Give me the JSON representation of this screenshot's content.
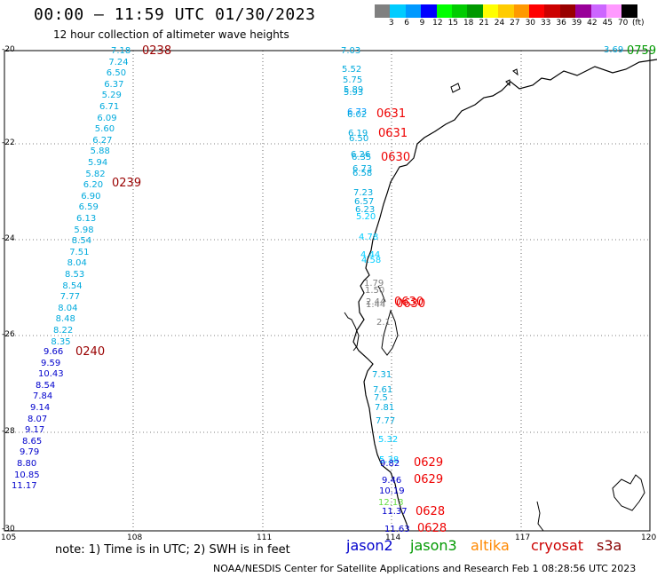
{
  "title": "00:00 – 11:59 UTC 01/30/2023",
  "subtitle": "12 hour collection of altimeter wave heights",
  "note": "note: 1) Time is in UTC; 2) SWH is in feet",
  "credit": "NOAA/NESDIS Center for Satellite Applications and Research   Feb  1 08:28:56 UTC 2023",
  "satellites": [
    {
      "name": "jason2",
      "color": "#0000cc"
    },
    {
      "name": "jason3",
      "color": "#009900"
    },
    {
      "name": "altika",
      "color": "#ff8800"
    },
    {
      "name": "cryosat",
      "color": "#cc0000"
    },
    {
      "name": "s3a",
      "color": "#880000"
    }
  ],
  "colorbar": {
    "unit_label": "(ft)",
    "bins": [
      {
        "label": "3",
        "color": "#808080"
      },
      {
        "label": "6",
        "color": "#00ccff"
      },
      {
        "label": "9",
        "color": "#0099ff"
      },
      {
        "label": "12",
        "color": "#0000ff"
      },
      {
        "label": "15",
        "color": "#00ff00"
      },
      {
        "label": "18",
        "color": "#00cc00"
      },
      {
        "label": "21",
        "color": "#009900"
      },
      {
        "label": "24",
        "color": "#ffff00"
      },
      {
        "label": "27",
        "color": "#ffcc00"
      },
      {
        "label": "30",
        "color": "#ff9900"
      },
      {
        "label": "33",
        "color": "#ff0000"
      },
      {
        "label": "36",
        "color": "#cc0000"
      },
      {
        "label": "39",
        "color": "#990000"
      },
      {
        "label": "42",
        "color": "#990099"
      },
      {
        "label": "45",
        "color": "#cc66ff"
      },
      {
        "label": "70",
        "color": "#ff99ff"
      },
      {
        "label": "",
        "color": "#000000"
      }
    ]
  },
  "axes": {
    "lat_labels": [
      "-20",
      "-22",
      "-24",
      "-26",
      "-28",
      "-30"
    ],
    "lon_labels": [
      "105",
      "108",
      "111",
      "114",
      "117",
      "120"
    ]
  },
  "tracks": [
    {
      "time": "0238",
      "time_color": "#990000",
      "color": "#00aadd",
      "values": [
        "7.18",
        "7.24",
        "6.50",
        "6.37",
        "5.29",
        "6.71",
        "6.09",
        "5.60",
        "6.27",
        "5.88",
        "5.94",
        "5.82",
        "6.20",
        "6.90",
        "6.59",
        "6.13",
        "5.98",
        "8.54",
        "7.51",
        "8.04",
        "8.53",
        "8.54",
        "7.77",
        "8.04",
        "8.48",
        "8.22",
        "8.35"
      ]
    },
    {
      "time": "0239",
      "time_color": "#990000"
    },
    {
      "time": "0240",
      "time_color": "#990000",
      "color2": "#0000cc",
      "values2": [
        "9.66",
        "9.59",
        "10.43",
        "8.54",
        "7.84",
        "9.14",
        "8.07",
        "9.17",
        "8.65",
        "9.79",
        "8.80",
        "10.85",
        "11.17"
      ]
    }
  ],
  "track_b": {
    "values": [
      "7.03",
      "5.52",
      "5.75",
      "5.89",
      "5.93",
      "6.73",
      "6.02",
      "6.19",
      "6.50",
      "6.26",
      "6.35",
      "6.73",
      "6.58",
      "7.23",
      "6.57",
      "6.23",
      "5.20",
      "4.78",
      "4.44",
      "4.58",
      "1.79",
      "1.50",
      "2.44",
      "1.44",
      "2.1",
      "7.31",
      "7.61",
      "7.5",
      "7.81",
      "7.77",
      "5.32",
      "5.38",
      "9.82",
      "9.46",
      "10.19",
      "12.13",
      "11.37",
      "11.63"
    ],
    "times": [
      "0631",
      "0631",
      "0630",
      "0630",
      "0630",
      "0629",
      "0629",
      "0628",
      "0628"
    ]
  },
  "top_right": {
    "value": "3.69",
    "time": "0759"
  }
}
